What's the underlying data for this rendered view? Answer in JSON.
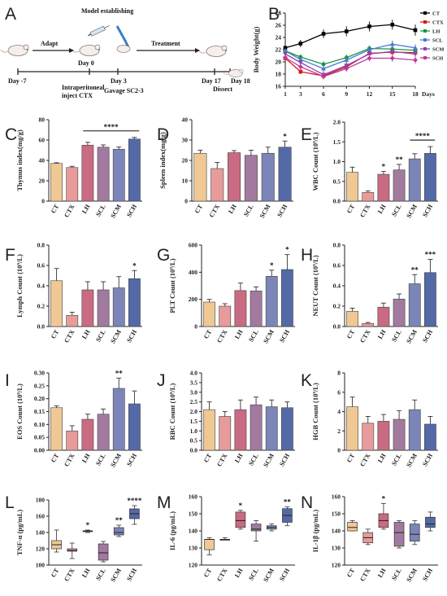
{
  "colors": [
    "#f0c894",
    "#e79b9b",
    "#c96b82",
    "#a27a9f",
    "#7c85b8",
    "#536aa6"
  ],
  "schematic": {
    "label": "A",
    "steps": {
      "adapt": "Adapt",
      "model": "Model establishing",
      "treatment": "Treatment"
    },
    "days": [
      "Day -7",
      "Day 0",
      "Day 3",
      "Day 17",
      "Day 18"
    ],
    "notes": [
      "Intraperitoneal",
      "inject CTX",
      "Gavage SC2-3",
      "Dissect"
    ],
    "icons": [
      "mouse-icon",
      "syringe-icon",
      "gavage-needle-icon",
      "mouse-icon",
      "mouse-icon"
    ]
  },
  "chart_data": [
    {
      "panel": "B",
      "type": "line",
      "xlabel": "Days",
      "ylabel": "Body Weight(g)",
      "x": [
        1,
        3,
        6,
        9,
        12,
        15,
        18
      ],
      "ylim": [
        16,
        28
      ],
      "yticks": [
        16,
        18,
        20,
        22,
        24,
        26,
        28
      ],
      "series": [
        {
          "name": "CT",
          "color": "#000000",
          "marker": "square",
          "values": [
            22.3,
            23.0,
            24.6,
            25.0,
            25.8,
            26.1,
            25.2
          ],
          "err": [
            0.4,
            0.6,
            0.7,
            0.8,
            0.8,
            0.8,
            0.9
          ]
        },
        {
          "name": "CTX",
          "color": "#d7191c",
          "marker": "square",
          "values": [
            20.6,
            18.4,
            17.7,
            19.2,
            21.4,
            21.6,
            21.5
          ],
          "err": [
            0.4,
            0.4,
            0.4,
            0.6,
            0.5,
            0.5,
            0.5
          ]
        },
        {
          "name": "LH",
          "color": "#1a9641",
          "marker": "circle",
          "values": [
            21.8,
            20.8,
            19.6,
            20.7,
            22.2,
            22.1,
            21.9
          ],
          "err": [
            0.4,
            0.4,
            0.5,
            0.5,
            0.5,
            0.5,
            0.5
          ]
        },
        {
          "name": "SCL",
          "color": "#4a7bd0",
          "marker": "triangle",
          "values": [
            21.8,
            20.4,
            18.9,
            20.3,
            22.0,
            22.9,
            22.3
          ],
          "err": [
            0.4,
            0.4,
            0.5,
            0.5,
            0.6,
            0.6,
            0.6
          ]
        },
        {
          "name": "SCM",
          "color": "#8e44ad",
          "marker": "tri-down",
          "values": [
            21.3,
            19.9,
            17.9,
            19.4,
            21.3,
            21.7,
            21.3
          ],
          "err": [
            0.4,
            0.4,
            0.5,
            0.5,
            0.5,
            0.5,
            0.5
          ]
        },
        {
          "name": "SCH",
          "color": "#c0399a",
          "marker": "diamond",
          "values": [
            20.7,
            19.2,
            17.6,
            18.9,
            20.6,
            20.6,
            20.3
          ],
          "err": [
            0.4,
            0.4,
            0.5,
            0.5,
            0.5,
            0.6,
            0.6
          ]
        }
      ]
    },
    {
      "panel": "C",
      "type": "bar",
      "ylabel": "Thymus index(mg/g)",
      "categories": [
        "CT",
        "CTX",
        "LH",
        "SCL",
        "SCM",
        "SCH"
      ],
      "values": [
        37,
        33,
        55,
        53,
        51,
        61
      ],
      "err": [
        0.7,
        1.2,
        2.8,
        2.2,
        2.1,
        1.6
      ],
      "ylim": [
        0,
        80
      ],
      "yticks": [
        0,
        20,
        40,
        60,
        80
      ],
      "stars": [
        {
          "i": [
            2,
            5
          ],
          "text": "****"
        }
      ]
    },
    {
      "panel": "D",
      "type": "bar",
      "ylabel": "Spleen index(mg/g)",
      "categories": [
        "CT",
        "CTX",
        "LH",
        "SCL",
        "SCM",
        "SCH"
      ],
      "values": [
        23.5,
        16,
        23.8,
        22.5,
        23.5,
        26.5
      ],
      "err": [
        1.5,
        3,
        1,
        2.5,
        3,
        3
      ],
      "ylim": [
        0,
        40
      ],
      "yticks": [
        0,
        10,
        20,
        30,
        40
      ],
      "stars": [
        {
          "i": [
            5
          ],
          "text": "*"
        }
      ]
    },
    {
      "panel": "E",
      "type": "bar",
      "ylabel": "WBC Count (10⁹/L)",
      "categories": [
        "CT",
        "CTX",
        "LH",
        "SCL",
        "SCM",
        "SCH"
      ],
      "values": [
        0.73,
        0.22,
        0.68,
        0.79,
        1.07,
        1.21
      ],
      "err": [
        0.13,
        0.04,
        0.07,
        0.14,
        0.13,
        0.17
      ],
      "ylim": [
        0,
        2.0
      ],
      "yticks": [
        0.0,
        0.5,
        1.0,
        1.5,
        2.0
      ],
      "stars": [
        {
          "i": [
            2
          ],
          "text": "*"
        },
        {
          "i": [
            3
          ],
          "text": "**"
        },
        {
          "i": [
            4,
            5
          ],
          "text": "****"
        }
      ]
    },
    {
      "panel": "F",
      "type": "bar",
      "ylabel": "Lymph Count (10⁹/L)",
      "categories": [
        "CT",
        "CTX",
        "LH",
        "SCL",
        "SCM",
        "SCH"
      ],
      "values": [
        0.45,
        0.11,
        0.36,
        0.36,
        0.38,
        0.47
      ],
      "err": [
        0.12,
        0.03,
        0.08,
        0.08,
        0.11,
        0.08
      ],
      "ylim": [
        0,
        0.8
      ],
      "yticks": [
        0.0,
        0.2,
        0.4,
        0.6,
        0.8
      ],
      "stars": [
        {
          "i": [
            5
          ],
          "text": "*"
        }
      ]
    },
    {
      "panel": "G",
      "type": "bar",
      "ylabel": "PLT Count (10⁹/L)",
      "categories": [
        "CT",
        "CTX",
        "LH",
        "SCL",
        "SCM",
        "SCH"
      ],
      "values": [
        180,
        150,
        265,
        262,
        370,
        420
      ],
      "err": [
        20,
        18,
        55,
        30,
        45,
        110
      ],
      "ylim": [
        0,
        600
      ],
      "yticks": [
        0,
        200,
        400,
        600
      ],
      "stars": [
        {
          "i": [
            4
          ],
          "text": "*"
        },
        {
          "i": [
            5
          ],
          "text": "*"
        }
      ]
    },
    {
      "panel": "H",
      "type": "bar",
      "ylabel": "NEUT Count (10⁹/L)",
      "categories": [
        "CT",
        "CTX",
        "LH",
        "SCL",
        "SCM",
        "SCH"
      ],
      "values": [
        0.15,
        0.03,
        0.19,
        0.27,
        0.42,
        0.53
      ],
      "err": [
        0.03,
        0.01,
        0.04,
        0.05,
        0.09,
        0.13
      ],
      "ylim": [
        0,
        0.8
      ],
      "yticks": [
        0.0,
        0.2,
        0.4,
        0.6,
        0.8
      ],
      "stars": [
        {
          "i": [
            4
          ],
          "text": "**"
        },
        {
          "i": [
            5
          ],
          "text": "***"
        }
      ]
    },
    {
      "panel": "I",
      "type": "bar",
      "ylabel": "EOS Count (10⁹/L)",
      "categories": [
        "CT",
        "CTX",
        "LH",
        "SCL",
        "SCM",
        "SCH"
      ],
      "values": [
        0.165,
        0.075,
        0.12,
        0.14,
        0.24,
        0.18
      ],
      "err": [
        0.007,
        0.02,
        0.02,
        0.02,
        0.04,
        0.05
      ],
      "ylim": [
        0,
        0.3
      ],
      "yticks": [
        0.0,
        0.05,
        0.1,
        0.15,
        0.2,
        0.25,
        0.3
      ],
      "stars": [
        {
          "i": [
            4
          ],
          "text": "**"
        }
      ]
    },
    {
      "panel": "J",
      "type": "bar",
      "ylabel": "RBC Count (10⁹/L)",
      "categories": [
        "CT",
        "CTX",
        "LH",
        "SCL",
        "SCM",
        "SCH"
      ],
      "values": [
        2.1,
        1.75,
        2.1,
        2.35,
        2.25,
        2.2
      ],
      "err": [
        0.4,
        0.25,
        0.5,
        0.4,
        0.35,
        0.3
      ],
      "ylim": [
        0,
        4
      ],
      "yticks": [
        0.0,
        0.5,
        1.0,
        1.5,
        2.0,
        2.5,
        3.0,
        3.5,
        4.0
      ],
      "stars": []
    },
    {
      "panel": "K",
      "type": "bar",
      "ylabel": "HGB Count (10⁹/L)",
      "categories": [
        "CT",
        "CTX",
        "LH",
        "SCL",
        "SCM",
        "SCH"
      ],
      "values": [
        4.5,
        2.8,
        3.0,
        3.2,
        4.2,
        2.7
      ],
      "err": [
        1.0,
        0.7,
        0.7,
        0.9,
        1.0,
        0.8
      ],
      "ylim": [
        0,
        8
      ],
      "yticks": [
        0,
        2,
        4,
        6,
        8
      ],
      "stars": []
    },
    {
      "panel": "L",
      "type": "box",
      "ylabel": "TNF-α (pg/mL)",
      "categories": [
        "CT",
        "CTX",
        "LH",
        "SCL",
        "SCM",
        "SCH"
      ],
      "boxes": [
        [
          116,
          120,
          125,
          130,
          143
        ],
        [
          108,
          117,
          118,
          120,
          127
        ],
        [
          140,
          141,
          142,
          142,
          143
        ],
        [
          104,
          106,
          115,
          126,
          129
        ],
        [
          135,
          137,
          140,
          146,
          149
        ],
        [
          150,
          157,
          163,
          169,
          173
        ]
      ],
      "ylim": [
        100,
        180
      ],
      "yticks": [
        100,
        120,
        140,
        160,
        180
      ],
      "stars": [
        {
          "i": [
            2
          ],
          "text": "*"
        },
        {
          "i": [
            4
          ],
          "text": "**"
        },
        {
          "i": [
            5
          ],
          "text": "****"
        }
      ]
    },
    {
      "panel": "M",
      "type": "box",
      "ylabel": "IL-6 (pg/mL)",
      "categories": [
        "CT",
        "CTX",
        "LH",
        "SCL",
        "SCM",
        "SCH"
      ],
      "boxes": [
        [
          126,
          129,
          135,
          135,
          136
        ],
        [
          135,
          135,
          135,
          135,
          136
        ],
        [
          141,
          142,
          146,
          151,
          152
        ],
        [
          134,
          140,
          141,
          144,
          146
        ],
        [
          140,
          141,
          142,
          143,
          144
        ],
        [
          143,
          145,
          149,
          153,
          154
        ]
      ],
      "ylim": [
        120,
        160
      ],
      "yticks": [
        120,
        130,
        140,
        150,
        160
      ],
      "stars": [
        {
          "i": [
            2
          ],
          "text": "*"
        },
        {
          "i": [
            5
          ],
          "text": "**"
        }
      ]
    },
    {
      "panel": "N",
      "type": "box",
      "ylabel": "IL-1β (pg/mL)",
      "categories": [
        "CT",
        "CTX",
        "LH",
        "SCL",
        "SCM",
        "SCH"
      ],
      "boxes": [
        [
          140,
          140,
          142,
          145,
          146
        ],
        [
          132,
          133,
          136,
          139,
          141
        ],
        [
          141,
          142,
          146,
          150,
          156
        ],
        [
          130,
          131,
          139,
          145,
          146
        ],
        [
          132,
          134,
          138,
          144,
          146
        ],
        [
          140,
          142,
          144,
          148,
          151
        ]
      ],
      "ylim": [
        120,
        160
      ],
      "yticks": [
        120,
        130,
        140,
        150,
        160
      ],
      "stars": [
        {
          "i": [
            2
          ],
          "text": "*"
        }
      ]
    }
  ]
}
